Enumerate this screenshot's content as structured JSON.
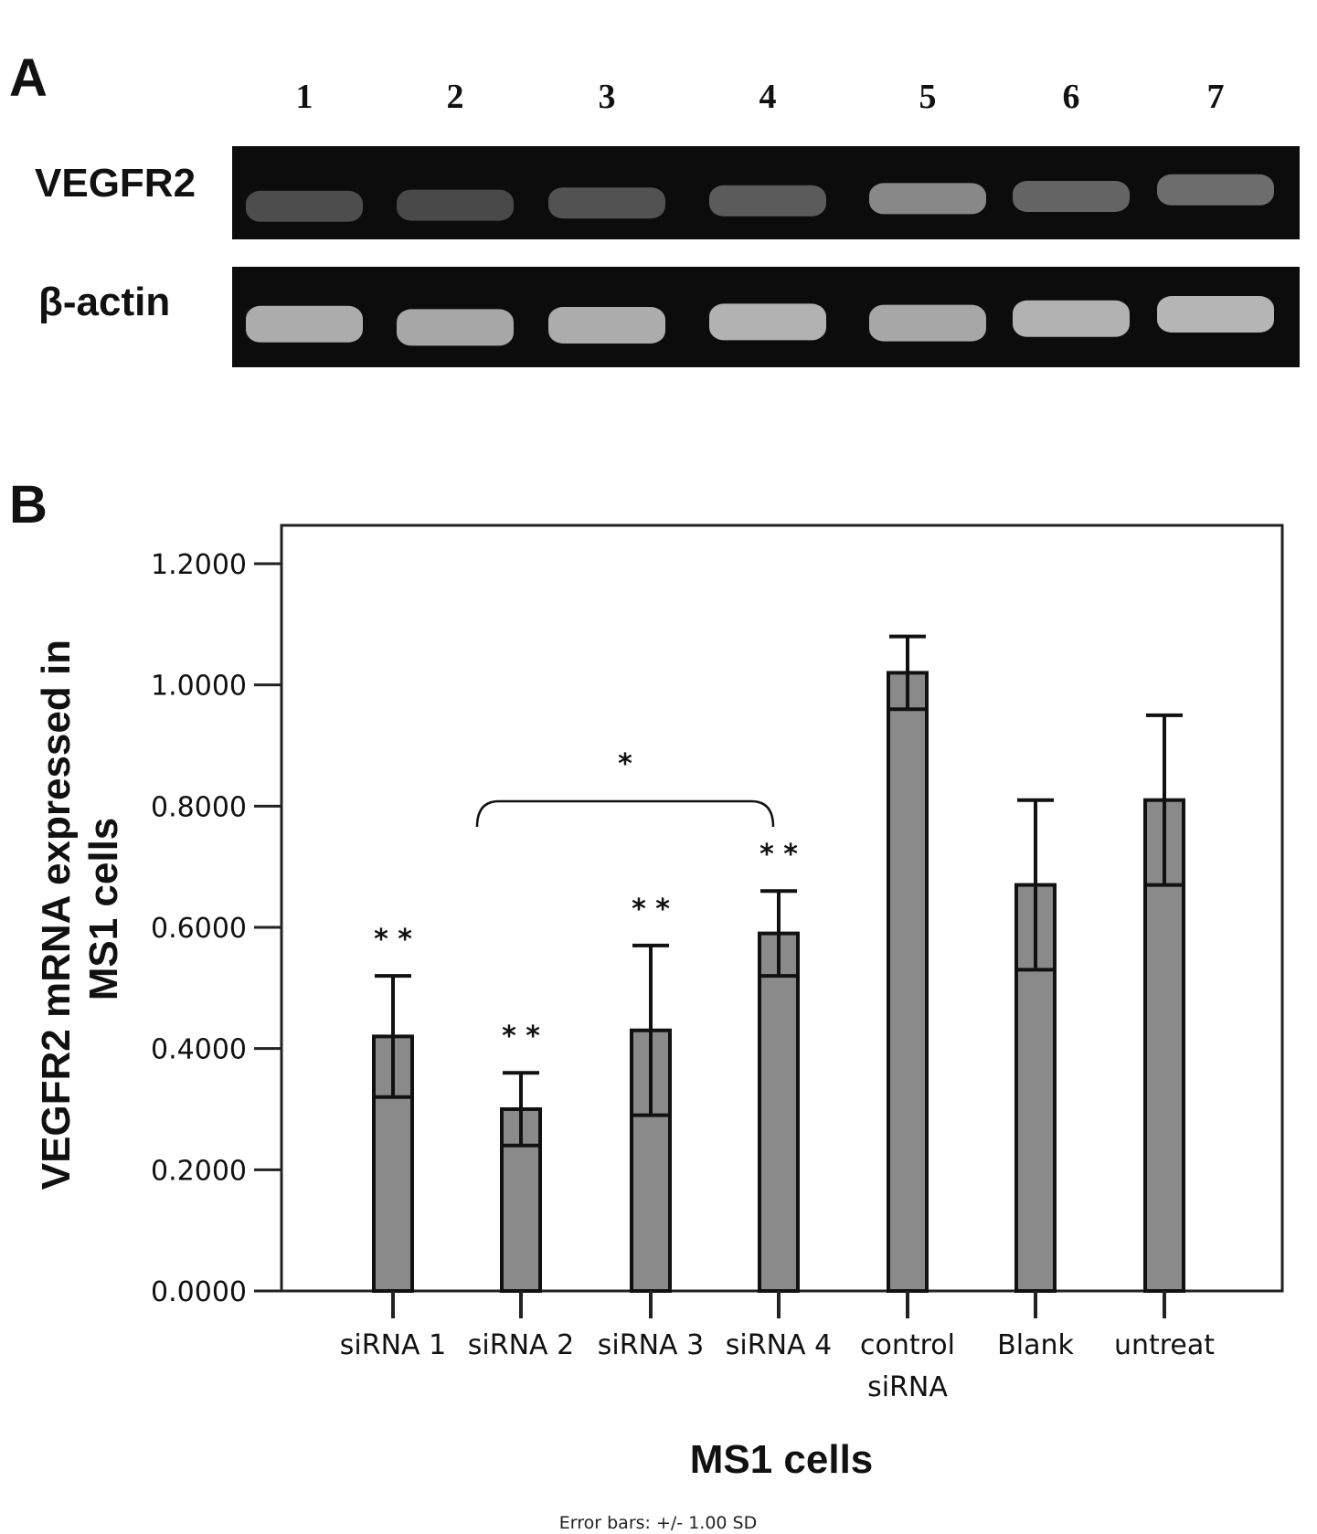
{
  "panel_a": {
    "letter": "A",
    "lanes": [
      "1",
      "2",
      "3",
      "4",
      "5",
      "6",
      "7"
    ],
    "rows": [
      {
        "label": "VEGFR2",
        "intensity": [
          0.22,
          0.2,
          0.25,
          0.3,
          0.55,
          0.35,
          0.4
        ]
      },
      {
        "label": "β-actin",
        "intensity": [
          0.75,
          0.72,
          0.75,
          0.78,
          0.72,
          0.78,
          0.8
        ]
      }
    ]
  },
  "panel_b": {
    "letter": "B"
  },
  "chart_data": {
    "type": "bar",
    "categories": [
      "siRNA 1",
      "siRNA 2",
      "siRNA 3",
      "siRNA 4",
      "control siRNA",
      "Blank",
      "untreat"
    ],
    "category_lines": [
      [
        "siRNA 1"
      ],
      [
        "siRNA 2"
      ],
      [
        "siRNA 3"
      ],
      [
        "siRNA 4"
      ],
      [
        "control",
        "siRNA"
      ],
      [
        "Blank"
      ],
      [
        "untreat"
      ]
    ],
    "values": [
      0.42,
      0.3,
      0.43,
      0.59,
      1.02,
      0.67,
      0.81
    ],
    "error_sd": [
      0.1,
      0.06,
      0.14,
      0.07,
      0.06,
      0.14,
      0.14
    ],
    "significance": [
      "* *",
      "* *",
      "* *",
      "* *",
      "",
      "",
      ""
    ],
    "bracket": {
      "from": 1,
      "to": 3,
      "label": "*"
    },
    "title": "",
    "xlabel": "MS1 cells",
    "ylabel_lines": [
      "VEGFR2 mRNA expressed in",
      "MS1 cells"
    ],
    "ylim": [
      0,
      1.2
    ],
    "yticks": [
      0.0,
      0.2,
      0.4,
      0.6,
      0.8,
      1.0,
      1.2
    ],
    "ytick_labels": [
      "0.0000",
      "0.2000",
      "0.4000",
      "0.6000",
      "0.8000",
      "1.0000",
      "1.2000"
    ],
    "footnote": "Error bars: +/- 1.00 SD",
    "grid": false,
    "bar_color": "#8a8a8a"
  }
}
